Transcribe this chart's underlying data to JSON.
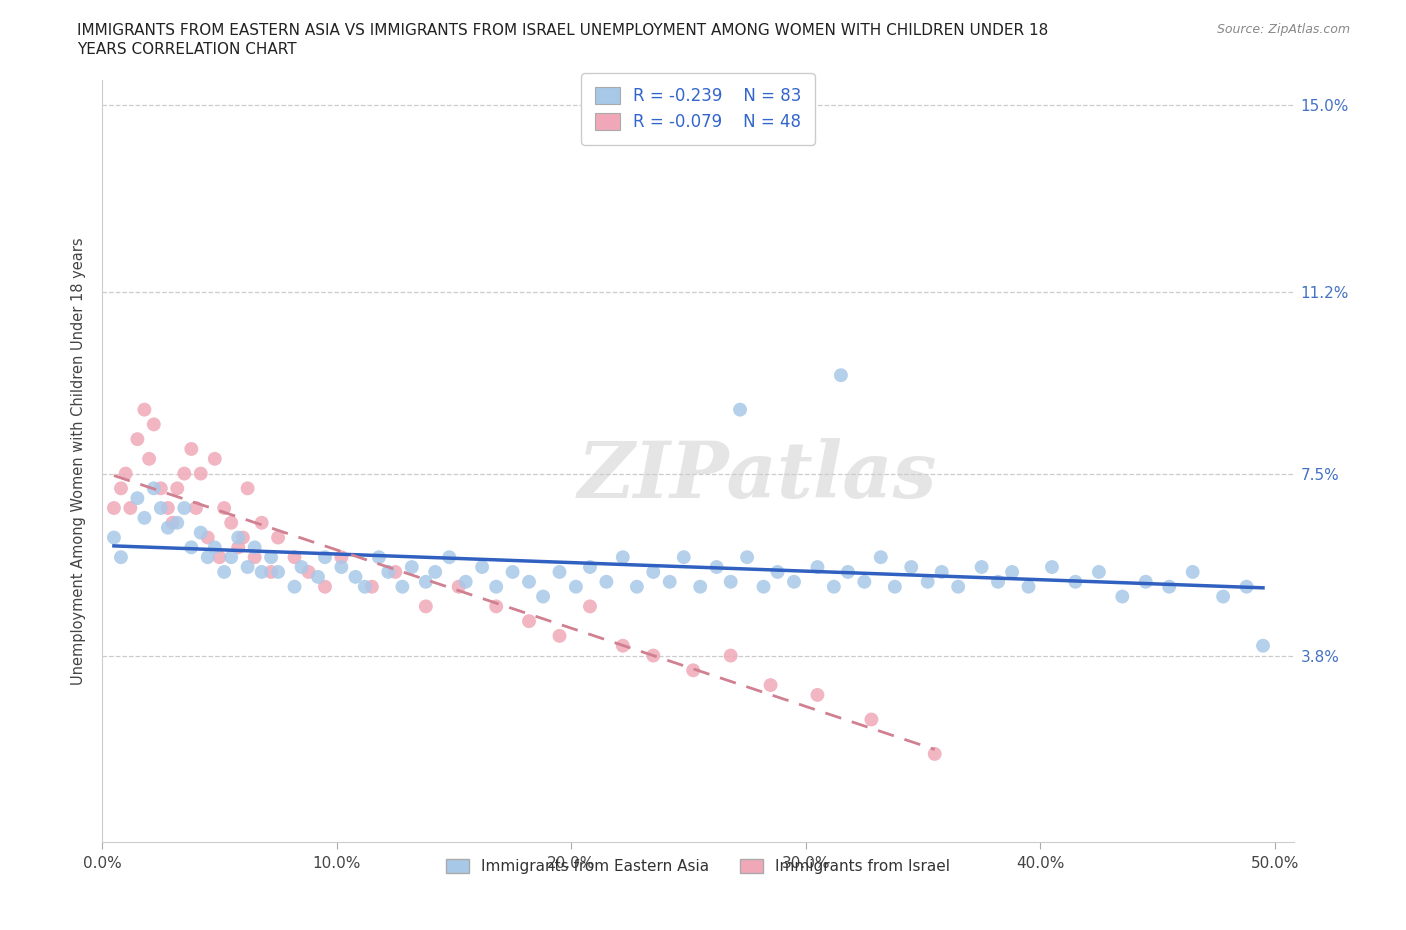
{
  "title_line1": "IMMIGRANTS FROM EASTERN ASIA VS IMMIGRANTS FROM ISRAEL UNEMPLOYMENT AMONG WOMEN WITH CHILDREN UNDER 18",
  "title_line2": "YEARS CORRELATION CHART",
  "source": "Source: ZipAtlas.com",
  "ylabel": "Unemployment Among Women with Children Under 18 years",
  "xlim": [
    0.0,
    0.5
  ],
  "ylim": [
    0.0,
    0.155
  ],
  "yticks": [
    0.0,
    0.038,
    0.075,
    0.112,
    0.15
  ],
  "ytick_labels": [
    "",
    "3.8%",
    "7.5%",
    "11.2%",
    "15.0%"
  ],
  "xticks": [
    0.0,
    0.1,
    0.2,
    0.3,
    0.4,
    0.5
  ],
  "xtick_labels": [
    "0.0%",
    "10.0%",
    "20.0%",
    "30.0%",
    "40.0%",
    "50.0%"
  ],
  "legend_r1": "R = -0.239",
  "legend_n1": "N = 83",
  "legend_r2": "R = -0.079",
  "legend_n2": "N = 48",
  "color_eastern_asia": "#a8c8e8",
  "color_israel": "#f0a8b8",
  "line_color_eastern_asia": "#3060c0",
  "line_color_israel": "#d08090",
  "watermark": "ZIPatlas",
  "eastern_asia_x": [
    0.005,
    0.008,
    0.015,
    0.018,
    0.022,
    0.025,
    0.028,
    0.032,
    0.035,
    0.038,
    0.042,
    0.045,
    0.048,
    0.052,
    0.055,
    0.058,
    0.062,
    0.065,
    0.068,
    0.072,
    0.075,
    0.082,
    0.085,
    0.092,
    0.095,
    0.102,
    0.108,
    0.112,
    0.118,
    0.122,
    0.128,
    0.132,
    0.138,
    0.142,
    0.148,
    0.155,
    0.162,
    0.168,
    0.175,
    0.182,
    0.188,
    0.195,
    0.202,
    0.208,
    0.215,
    0.222,
    0.228,
    0.235,
    0.242,
    0.248,
    0.255,
    0.262,
    0.268,
    0.275,
    0.282,
    0.288,
    0.295,
    0.305,
    0.312,
    0.318,
    0.325,
    0.332,
    0.338,
    0.345,
    0.352,
    0.358,
    0.365,
    0.375,
    0.382,
    0.388,
    0.395,
    0.405,
    0.415,
    0.425,
    0.435,
    0.445,
    0.455,
    0.465,
    0.478,
    0.488,
    0.495,
    0.272,
    0.315
  ],
  "eastern_asia_y": [
    0.062,
    0.058,
    0.07,
    0.066,
    0.072,
    0.068,
    0.064,
    0.065,
    0.068,
    0.06,
    0.063,
    0.058,
    0.06,
    0.055,
    0.058,
    0.062,
    0.056,
    0.06,
    0.055,
    0.058,
    0.055,
    0.052,
    0.056,
    0.054,
    0.058,
    0.056,
    0.054,
    0.052,
    0.058,
    0.055,
    0.052,
    0.056,
    0.053,
    0.055,
    0.058,
    0.053,
    0.056,
    0.052,
    0.055,
    0.053,
    0.05,
    0.055,
    0.052,
    0.056,
    0.053,
    0.058,
    0.052,
    0.055,
    0.053,
    0.058,
    0.052,
    0.056,
    0.053,
    0.058,
    0.052,
    0.055,
    0.053,
    0.056,
    0.052,
    0.055,
    0.053,
    0.058,
    0.052,
    0.056,
    0.053,
    0.055,
    0.052,
    0.056,
    0.053,
    0.055,
    0.052,
    0.056,
    0.053,
    0.055,
    0.05,
    0.053,
    0.052,
    0.055,
    0.05,
    0.052,
    0.04,
    0.088,
    0.095
  ],
  "israel_x": [
    0.005,
    0.008,
    0.01,
    0.012,
    0.015,
    0.018,
    0.02,
    0.022,
    0.025,
    0.028,
    0.03,
    0.032,
    0.035,
    0.038,
    0.04,
    0.042,
    0.045,
    0.048,
    0.05,
    0.052,
    0.055,
    0.058,
    0.06,
    0.062,
    0.065,
    0.068,
    0.072,
    0.075,
    0.082,
    0.088,
    0.095,
    0.102,
    0.115,
    0.125,
    0.138,
    0.152,
    0.168,
    0.182,
    0.195,
    0.208,
    0.222,
    0.235,
    0.252,
    0.268,
    0.285,
    0.305,
    0.328,
    0.355
  ],
  "israel_y": [
    0.068,
    0.072,
    0.075,
    0.068,
    0.082,
    0.088,
    0.078,
    0.085,
    0.072,
    0.068,
    0.065,
    0.072,
    0.075,
    0.08,
    0.068,
    0.075,
    0.062,
    0.078,
    0.058,
    0.068,
    0.065,
    0.06,
    0.062,
    0.072,
    0.058,
    0.065,
    0.055,
    0.062,
    0.058,
    0.055,
    0.052,
    0.058,
    0.052,
    0.055,
    0.048,
    0.052,
    0.048,
    0.045,
    0.042,
    0.048,
    0.04,
    0.038,
    0.035,
    0.038,
    0.032,
    0.03,
    0.025,
    0.018
  ]
}
